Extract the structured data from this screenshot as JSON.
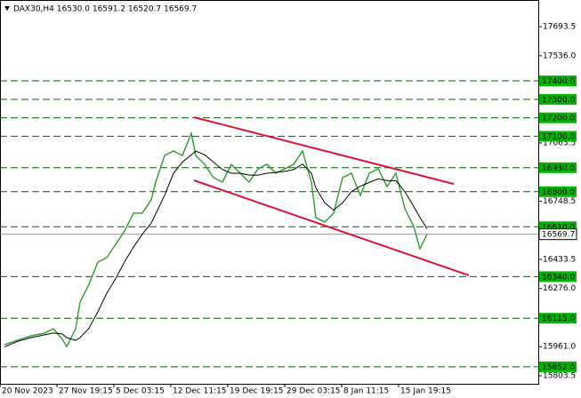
{
  "chart_data": {
    "type": "line",
    "title": "DAX30,H4  16530.0 16591.2 16520.7 16569.7",
    "xlim": [
      0,
      151.25
    ],
    "ylim": [
      15760,
      17838
    ],
    "xticks": [
      {
        "value": 0,
        "label": "20 Nov 2023"
      },
      {
        "value": 16,
        "label": "27 Nov 19:15"
      },
      {
        "value": 32,
        "label": "5 Dec 03:15"
      },
      {
        "value": 48,
        "label": "12 Dec 11:15"
      },
      {
        "value": 64,
        "label": "19 Dec 19:15"
      },
      {
        "value": 80,
        "label": "29 Dec 03:15"
      },
      {
        "value": 96,
        "label": "8 Jan 11:15"
      },
      {
        "value": 112,
        "label": "15 Jan 19:15"
      }
    ],
    "yticks": [
      {
        "value": 17693.5,
        "label": "17693.5"
      },
      {
        "value": 17536,
        "label": "17536.0"
      },
      {
        "value": 17063.5,
        "label": "17063.5"
      },
      {
        "value": 16748.5,
        "label": "16748.5"
      },
      {
        "value": 16433.5,
        "label": "16433.5"
      },
      {
        "value": 16276,
        "label": "16276.0"
      },
      {
        "value": 15961,
        "label": "15961.0"
      },
      {
        "value": 15803.5,
        "label": "15803.5"
      }
    ],
    "levels": [
      {
        "value": 17400,
        "label": "17400.0"
      },
      {
        "value": 17300,
        "label": "17300.0"
      },
      {
        "value": 17200,
        "label": "17200.0"
      },
      {
        "value": 17100,
        "label": "17100.0"
      },
      {
        "value": 16930,
        "label": "16930.0"
      },
      {
        "value": 16800,
        "label": "16800.0"
      },
      {
        "value": 16610,
        "label": "16610.0"
      },
      {
        "value": 16340,
        "label": "16340.0"
      },
      {
        "value": 16115,
        "label": "16115.0"
      },
      {
        "value": 15852,
        "label": "15852.0"
      }
    ],
    "level_color": "#006400",
    "level_box_color": "#00b400",
    "last_price": 16569.7,
    "series": [
      {
        "color": "#2e9a2e",
        "x": [
          1.25,
          5,
          8.75,
          12.5,
          15,
          17.5,
          18.75,
          21.25,
          22.5,
          25,
          27.5,
          30,
          32.5,
          35,
          37.5,
          40,
          42.5,
          43.75,
          46.25,
          48.75,
          51.25,
          53.75,
          55,
          57.5,
          60,
          62.5,
          65,
          67.5,
          70,
          72.5,
          75,
          77.5,
          80,
          82.5,
          85,
          87.5,
          88.75,
          91.25,
          93.75,
          96.25,
          98.75,
          101.25,
          103.75,
          106.25,
          108.75,
          111.25,
          113.75,
          116.25,
          118,
          120
        ],
        "values": [
          15972,
          15996,
          16020,
          16034,
          16058,
          16001,
          15962,
          16058,
          16203,
          16299,
          16419,
          16443,
          16515,
          16587,
          16684,
          16684,
          16756,
          16852,
          16996,
          17020,
          16996,
          17116,
          16996,
          16948,
          16876,
          16852,
          16948,
          16900,
          16852,
          16924,
          16948,
          16900,
          16924,
          16948,
          17020,
          16852,
          16660,
          16636,
          16684,
          16876,
          16900,
          16780,
          16900,
          16924,
          16828,
          16900,
          16708,
          16612,
          16491,
          16569.7
        ]
      },
      {
        "color": "#000000",
        "x": [
          1.25,
          5,
          8.75,
          12.5,
          15,
          17.5,
          18.75,
          21.25,
          22.5,
          25,
          27.5,
          30,
          32.5,
          35,
          37.5,
          40,
          42.5,
          43.75,
          46.25,
          48.75,
          51.25,
          53.75,
          55,
          57.5,
          60,
          62.5,
          65,
          67.5,
          70,
          72.5,
          75,
          77.5,
          80,
          82.5,
          85,
          87.5,
          88.75,
          91.25,
          93.75,
          96.25,
          98.75,
          101.25,
          103.75,
          106.25,
          108.75,
          111.25,
          113.75,
          116.25,
          118,
          120
        ],
        "values": [
          15960,
          15990,
          16010,
          16025,
          16035,
          16030,
          16010,
          15995,
          16010,
          16060,
          16150,
          16250,
          16330,
          16420,
          16500,
          16570,
          16630,
          16680,
          16780,
          16900,
          16960,
          17000,
          17020,
          17000,
          16960,
          16920,
          16900,
          16900,
          16890,
          16890,
          16900,
          16905,
          16910,
          16920,
          16950,
          16900,
          16820,
          16740,
          16700,
          16740,
          16800,
          16830,
          16850,
          16870,
          16860,
          16860,
          16800,
          16720,
          16660,
          16600
        ]
      }
    ],
    "channels": [
      {
        "color": "#dc143c",
        "x": [
          54.5,
          127.5
        ],
        "values": [
          17203,
          16842
        ]
      },
      {
        "color": "#dc143c",
        "x": [
          54.5,
          131.75
        ],
        "values": [
          16861.5,
          16347
        ]
      }
    ]
  }
}
